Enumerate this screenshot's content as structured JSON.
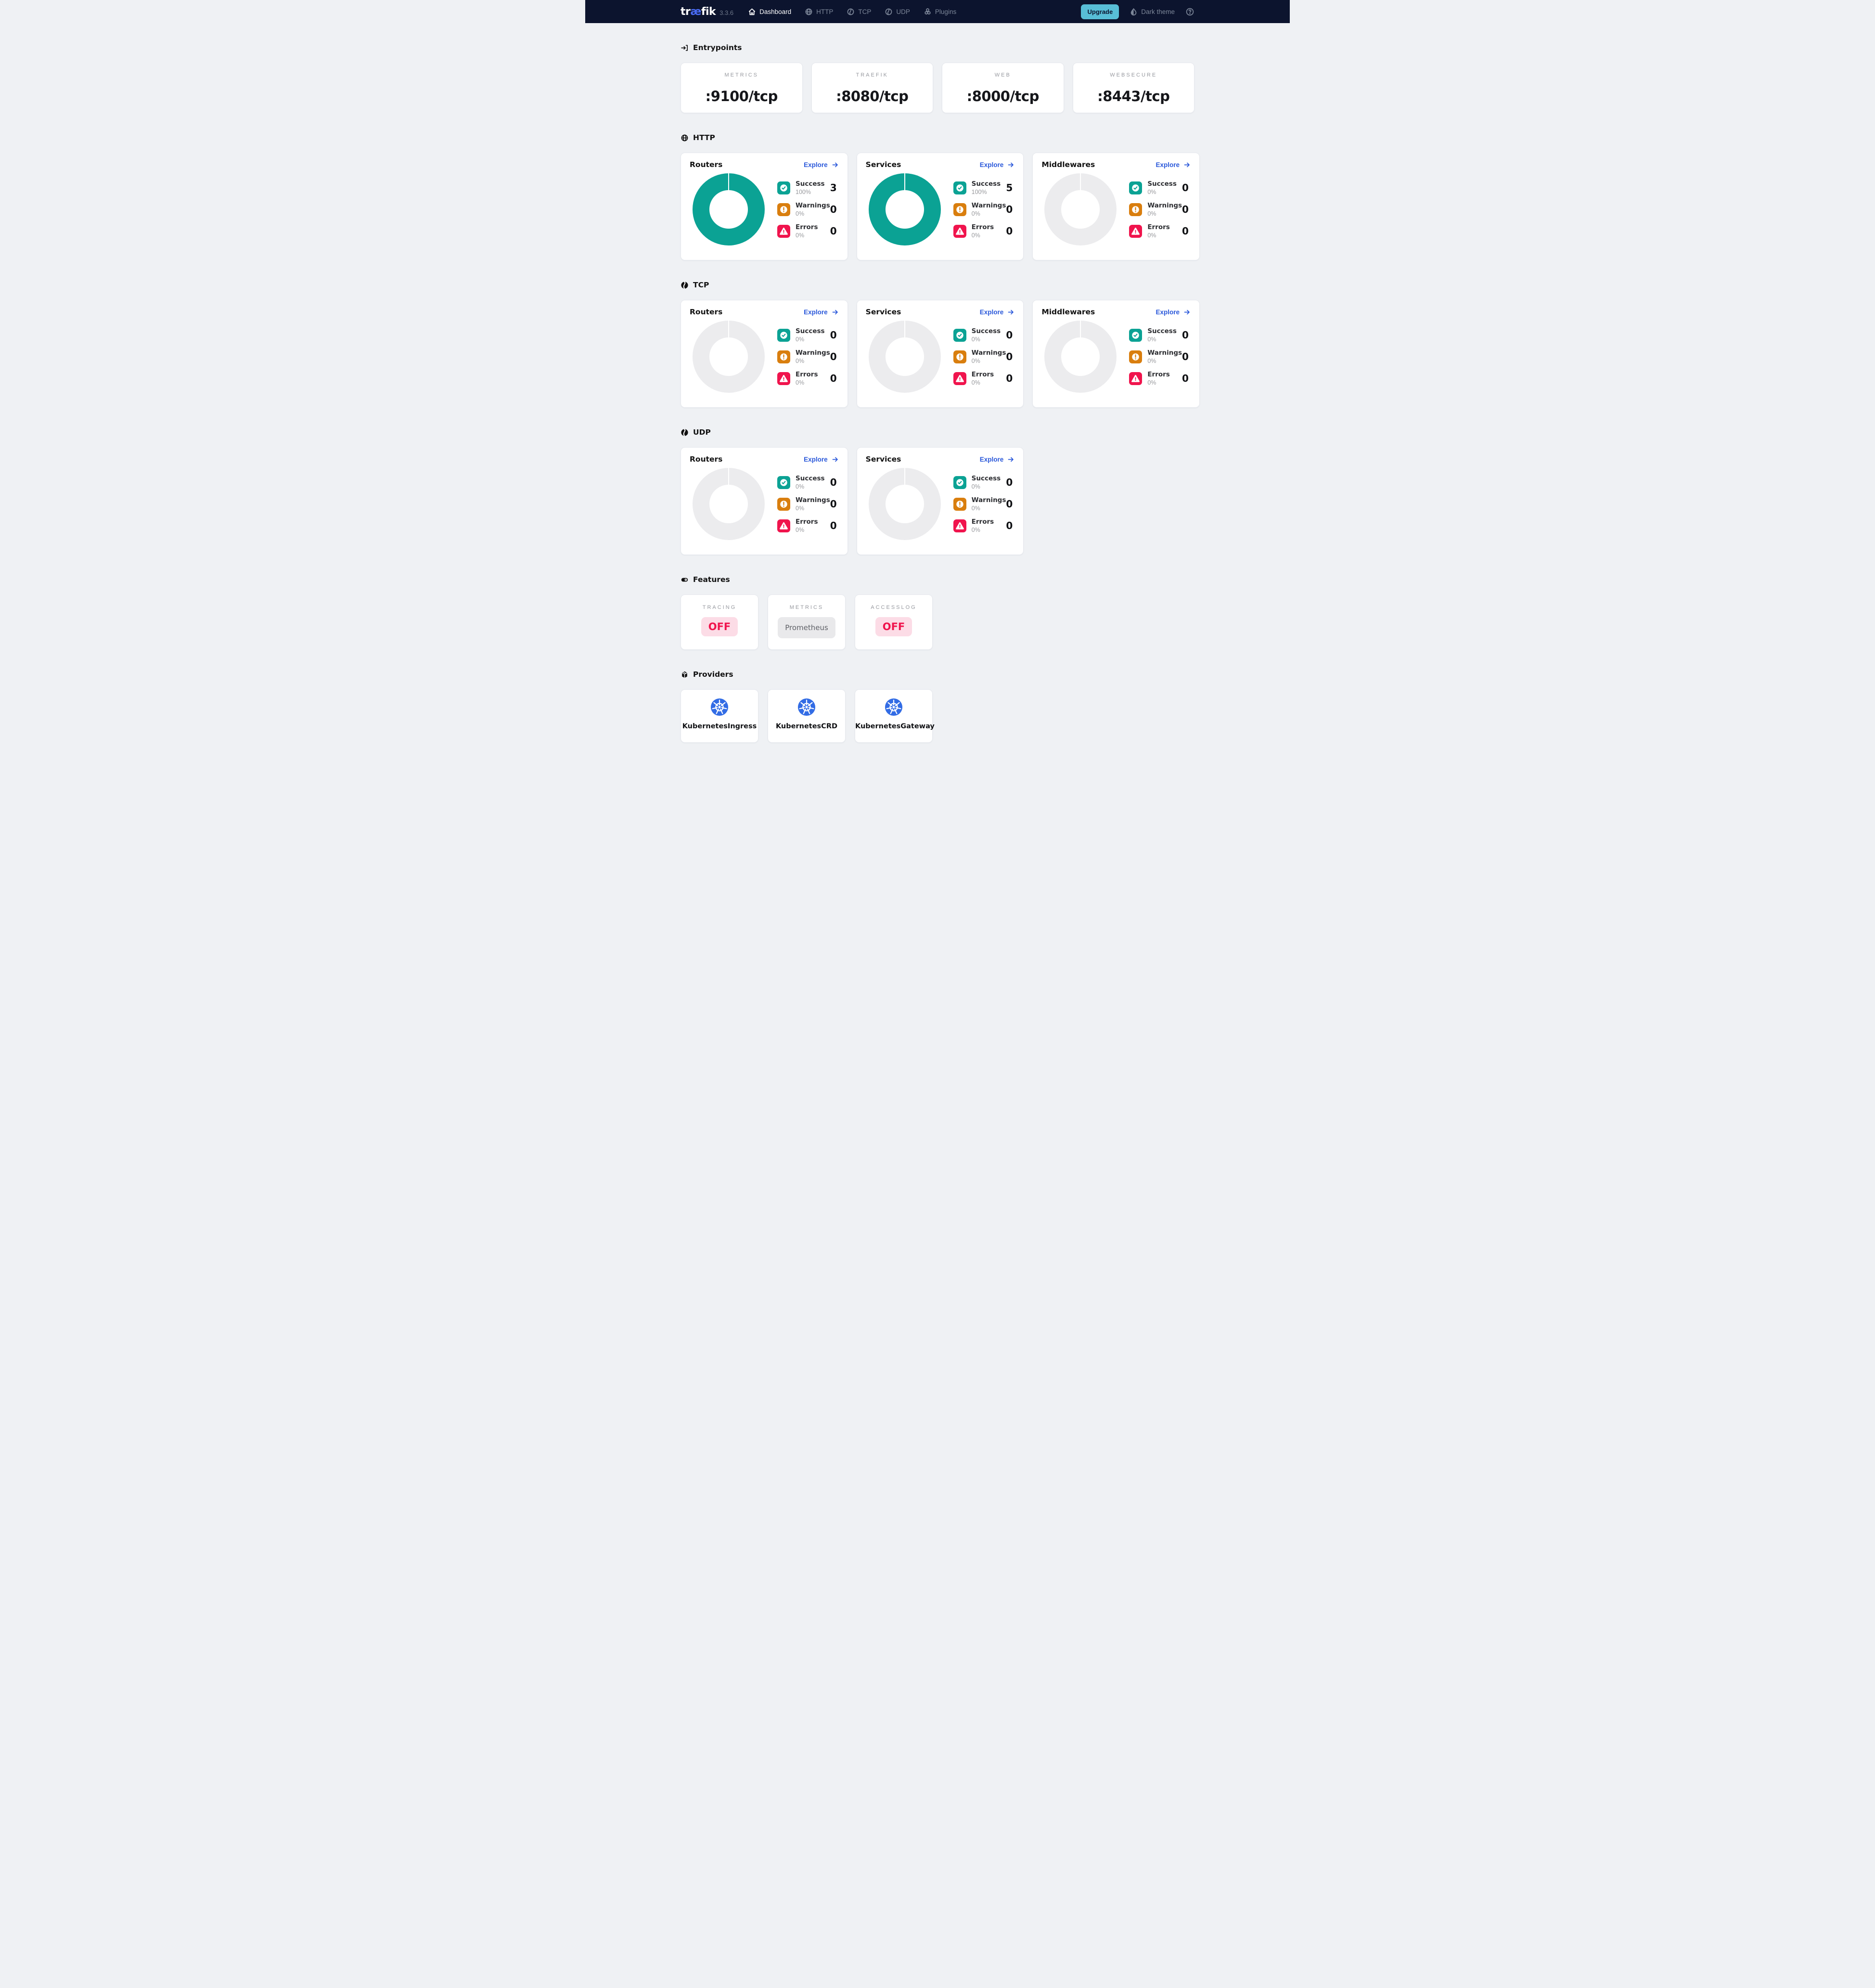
{
  "navbar": {
    "logo_prefix": "tr",
    "logo_ae": "æ",
    "logo_suffix": "fik",
    "version": "3.3.6",
    "items": [
      {
        "label": "Dashboard",
        "icon": "home",
        "active": true
      },
      {
        "label": "HTTP",
        "icon": "globe",
        "active": false
      },
      {
        "label": "TCP",
        "icon": "protocol",
        "active": false
      },
      {
        "label": "UDP",
        "icon": "protocol",
        "active": false
      },
      {
        "label": "Plugins",
        "icon": "plugins",
        "active": false
      }
    ],
    "upgrade_label": "Upgrade",
    "theme_toggle_label": "Dark theme"
  },
  "entrypoints": {
    "title": "Entrypoints",
    "cards": [
      {
        "label": "METRICS",
        "value": ":9100/tcp"
      },
      {
        "label": "TRAEFIK",
        "value": ":8080/tcp"
      },
      {
        "label": "WEB",
        "value": ":8000/tcp"
      },
      {
        "label": "WEBSECURE",
        "value": ":8443/tcp"
      }
    ]
  },
  "chart_sections": [
    {
      "id": "http",
      "title": "HTTP",
      "icon": "globe-bold",
      "cards": [
        {
          "title": "Routers",
          "explore_label": "Explore",
          "active": true,
          "stats": [
            {
              "kind": "success",
              "label": "Success",
              "percent": "100%",
              "value": "3"
            },
            {
              "kind": "warning",
              "label": "Warnings",
              "percent": "0%",
              "value": "0"
            },
            {
              "kind": "error",
              "label": "Errors",
              "percent": "0%",
              "value": "0"
            }
          ]
        },
        {
          "title": "Services",
          "explore_label": "Explore",
          "active": true,
          "stats": [
            {
              "kind": "success",
              "label": "Success",
              "percent": "100%",
              "value": "5"
            },
            {
              "kind": "warning",
              "label": "Warnings",
              "percent": "0%",
              "value": "0"
            },
            {
              "kind": "error",
              "label": "Errors",
              "percent": "0%",
              "value": "0"
            }
          ]
        },
        {
          "title": "Middlewares",
          "explore_label": "Explore",
          "active": false,
          "stats": [
            {
              "kind": "success",
              "label": "Success",
              "percent": "0%",
              "value": "0"
            },
            {
              "kind": "warning",
              "label": "Warnings",
              "percent": "0%",
              "value": "0"
            },
            {
              "kind": "error",
              "label": "Errors",
              "percent": "0%",
              "value": "0"
            }
          ]
        }
      ]
    },
    {
      "id": "tcp",
      "title": "TCP",
      "icon": "protocol-filled",
      "cards": [
        {
          "title": "Routers",
          "explore_label": "Explore",
          "active": false,
          "stats": [
            {
              "kind": "success",
              "label": "Success",
              "percent": "0%",
              "value": "0"
            },
            {
              "kind": "warning",
              "label": "Warnings",
              "percent": "0%",
              "value": "0"
            },
            {
              "kind": "error",
              "label": "Errors",
              "percent": "0%",
              "value": "0"
            }
          ]
        },
        {
          "title": "Services",
          "explore_label": "Explore",
          "active": false,
          "stats": [
            {
              "kind": "success",
              "label": "Success",
              "percent": "0%",
              "value": "0"
            },
            {
              "kind": "warning",
              "label": "Warnings",
              "percent": "0%",
              "value": "0"
            },
            {
              "kind": "error",
              "label": "Errors",
              "percent": "0%",
              "value": "0"
            }
          ]
        },
        {
          "title": "Middlewares",
          "explore_label": "Explore",
          "active": false,
          "stats": [
            {
              "kind": "success",
              "label": "Success",
              "percent": "0%",
              "value": "0"
            },
            {
              "kind": "warning",
              "label": "Warnings",
              "percent": "0%",
              "value": "0"
            },
            {
              "kind": "error",
              "label": "Errors",
              "percent": "0%",
              "value": "0"
            }
          ]
        }
      ]
    },
    {
      "id": "udp",
      "title": "UDP",
      "icon": "protocol-filled",
      "cards": [
        {
          "title": "Routers",
          "explore_label": "Explore",
          "active": false,
          "stats": [
            {
              "kind": "success",
              "label": "Success",
              "percent": "0%",
              "value": "0"
            },
            {
              "kind": "warning",
              "label": "Warnings",
              "percent": "0%",
              "value": "0"
            },
            {
              "kind": "error",
              "label": "Errors",
              "percent": "0%",
              "value": "0"
            }
          ]
        },
        {
          "title": "Services",
          "explore_label": "Explore",
          "active": false,
          "stats": [
            {
              "kind": "success",
              "label": "Success",
              "percent": "0%",
              "value": "0"
            },
            {
              "kind": "warning",
              "label": "Warnings",
              "percent": "0%",
              "value": "0"
            },
            {
              "kind": "error",
              "label": "Errors",
              "percent": "0%",
              "value": "0"
            }
          ]
        }
      ]
    }
  ],
  "features": {
    "title": "Features",
    "cards": [
      {
        "label": "TRACING",
        "value": "OFF",
        "state": "off"
      },
      {
        "label": "METRICS",
        "value": "Prometheus",
        "state": "neutral"
      },
      {
        "label": "ACCESSLOG",
        "value": "OFF",
        "state": "off"
      }
    ]
  },
  "providers": {
    "title": "Providers",
    "cards": [
      {
        "label": "KubernetesIngress"
      },
      {
        "label": "KubernetesCRD"
      },
      {
        "label": "KubernetesGateway"
      }
    ]
  },
  "colors": {
    "navbar_bg": "#0c142e",
    "logo_ae_blue": "#4a6cf5",
    "upgrade_cyan": "#58bed7",
    "explore_blue": "#2a58da",
    "success_teal": "#0ba294",
    "warning_orange": "#d97e0e",
    "error_red": "#f0144d",
    "donut_empty": "#ececee",
    "off_badge_bg": "#fcdce6",
    "kubernetes_blue": "#326ce5",
    "page_bg": "#eff1f4"
  }
}
